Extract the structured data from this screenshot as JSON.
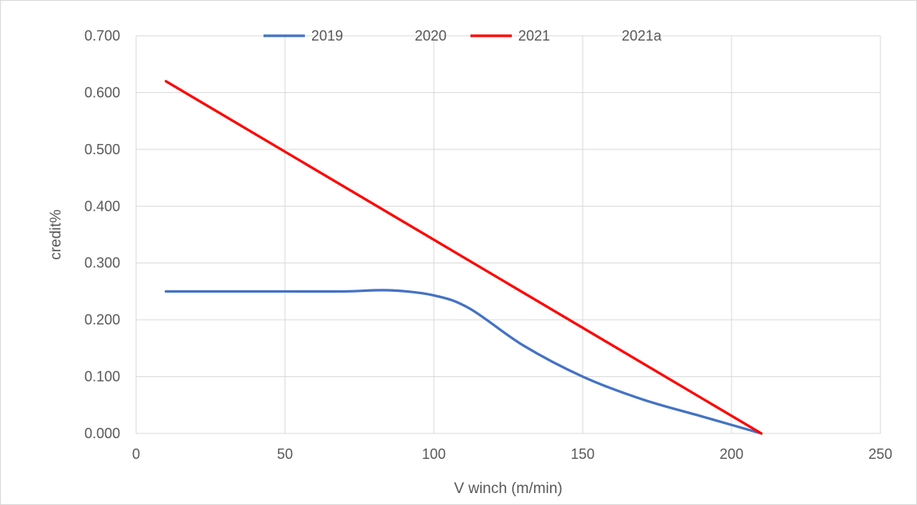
{
  "chart_data": {
    "type": "line",
    "title": "",
    "xlabel": "V winch (m/min)",
    "ylabel": "credit%",
    "xlim": [
      0,
      250
    ],
    "ylim": [
      0,
      0.7
    ],
    "x_ticks": [
      "0",
      "50",
      "100",
      "150",
      "200",
      "250"
    ],
    "y_ticks": [
      "0.000",
      "0.100",
      "0.200",
      "0.300",
      "0.400",
      "0.500",
      "0.600",
      "0.700"
    ],
    "grid": true,
    "legend_position": "top",
    "series": [
      {
        "name": "2019",
        "color": "#4472c4",
        "smooth": true,
        "x": [
          10,
          30,
          50,
          70,
          85,
          100,
          112,
          130,
          150,
          170,
          190,
          210
        ],
        "y": [
          0.25,
          0.25,
          0.25,
          0.25,
          0.252,
          0.243,
          0.22,
          0.155,
          0.1,
          0.06,
          0.03,
          0.0
        ]
      },
      {
        "name": "2020",
        "color": "#ed7d31",
        "x": [],
        "y": []
      },
      {
        "name": "2021",
        "color": "#ff0000",
        "x": [
          10,
          210
        ],
        "y": [
          0.62,
          0.0
        ]
      },
      {
        "name": "2021a",
        "color": "#a5a5a5",
        "x": [],
        "y": []
      }
    ]
  }
}
